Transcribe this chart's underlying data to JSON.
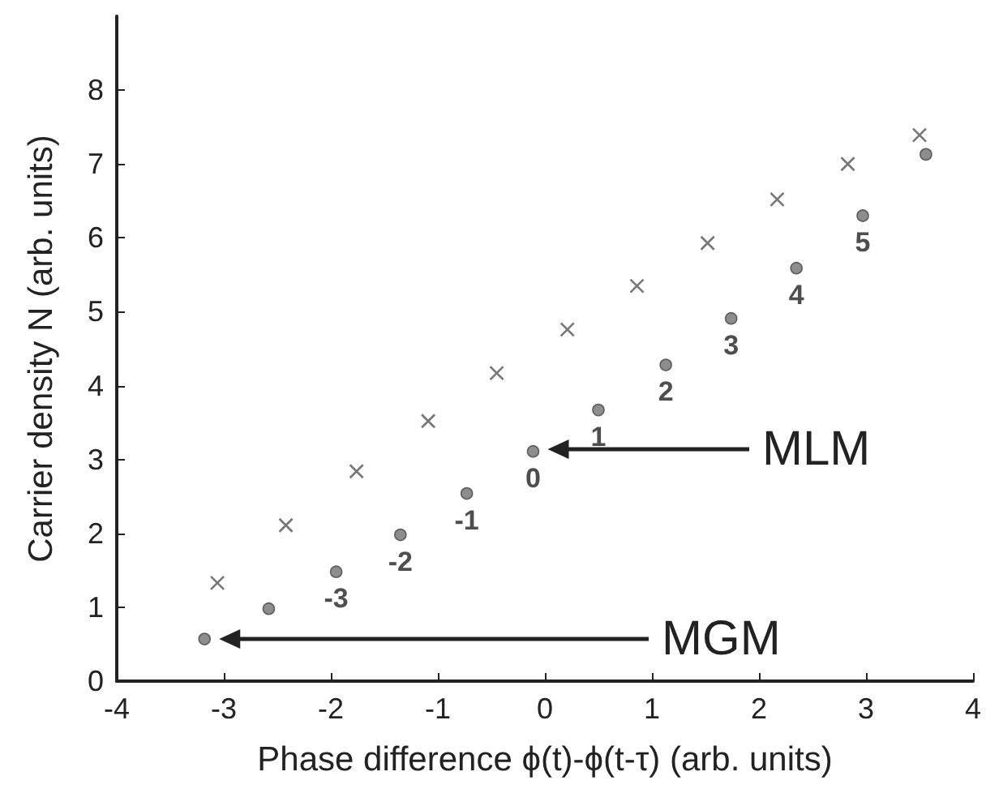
{
  "chart_data": {
    "type": "scatter",
    "xlabel": "Phase difference ϕ(t)-ϕ(t-τ) (arb. units)",
    "ylabel": "Carrier density N (arb. units)",
    "xlim": [
      -4,
      4
    ],
    "xticks": [
      -4,
      -3,
      -2,
      -1,
      0,
      1,
      2,
      3,
      4
    ],
    "ylim": [
      0,
      9
    ],
    "yticks": [
      0,
      1,
      2,
      3,
      4,
      5,
      6,
      7,
      8
    ],
    "grid": false,
    "series": [
      {
        "color": "#707070",
        "marker": "circle",
        "x": [
          -3.18,
          -2.58,
          -1.95,
          -1.35,
          -0.73,
          -0.11,
          0.5,
          1.13,
          1.74,
          2.35,
          2.97,
          3.56
        ],
        "values": [
          0.57,
          0.98,
          1.48,
          1.98,
          2.54,
          3.11,
          3.67,
          4.28,
          4.91,
          5.59,
          6.3,
          7.13
        ]
      },
      {
        "color": "#555555",
        "marker": "cross",
        "x": [
          -3.06,
          -2.42,
          -1.76,
          -1.09,
          -0.45,
          0.21,
          0.86,
          1.52,
          2.17,
          2.83,
          3.5
        ],
        "values": [
          1.33,
          2.11,
          2.84,
          3.52,
          4.17,
          4.76,
          5.35,
          5.93,
          6.52,
          7.0,
          7.39
        ]
      }
    ],
    "annotations": [
      "MLM",
      "MGM",
      {
        "text": "-3",
        "x": -1.95,
        "y": 1.48
      },
      {
        "text": "-2",
        "x": -1.35,
        "y": 1.98
      },
      {
        "text": "-1",
        "x": -0.73,
        "y": 2.54
      },
      {
        "text": "0",
        "x": -0.11,
        "y": 3.11
      },
      {
        "text": "1",
        "x": 0.5,
        "y": 3.67
      },
      {
        "text": "2",
        "x": 1.13,
        "y": 4.28
      },
      {
        "text": "3",
        "x": 1.74,
        "y": 4.91
      },
      {
        "text": "4",
        "x": 2.35,
        "y": 5.59
      },
      {
        "text": "5",
        "x": 2.97,
        "y": 6.3
      }
    ]
  }
}
